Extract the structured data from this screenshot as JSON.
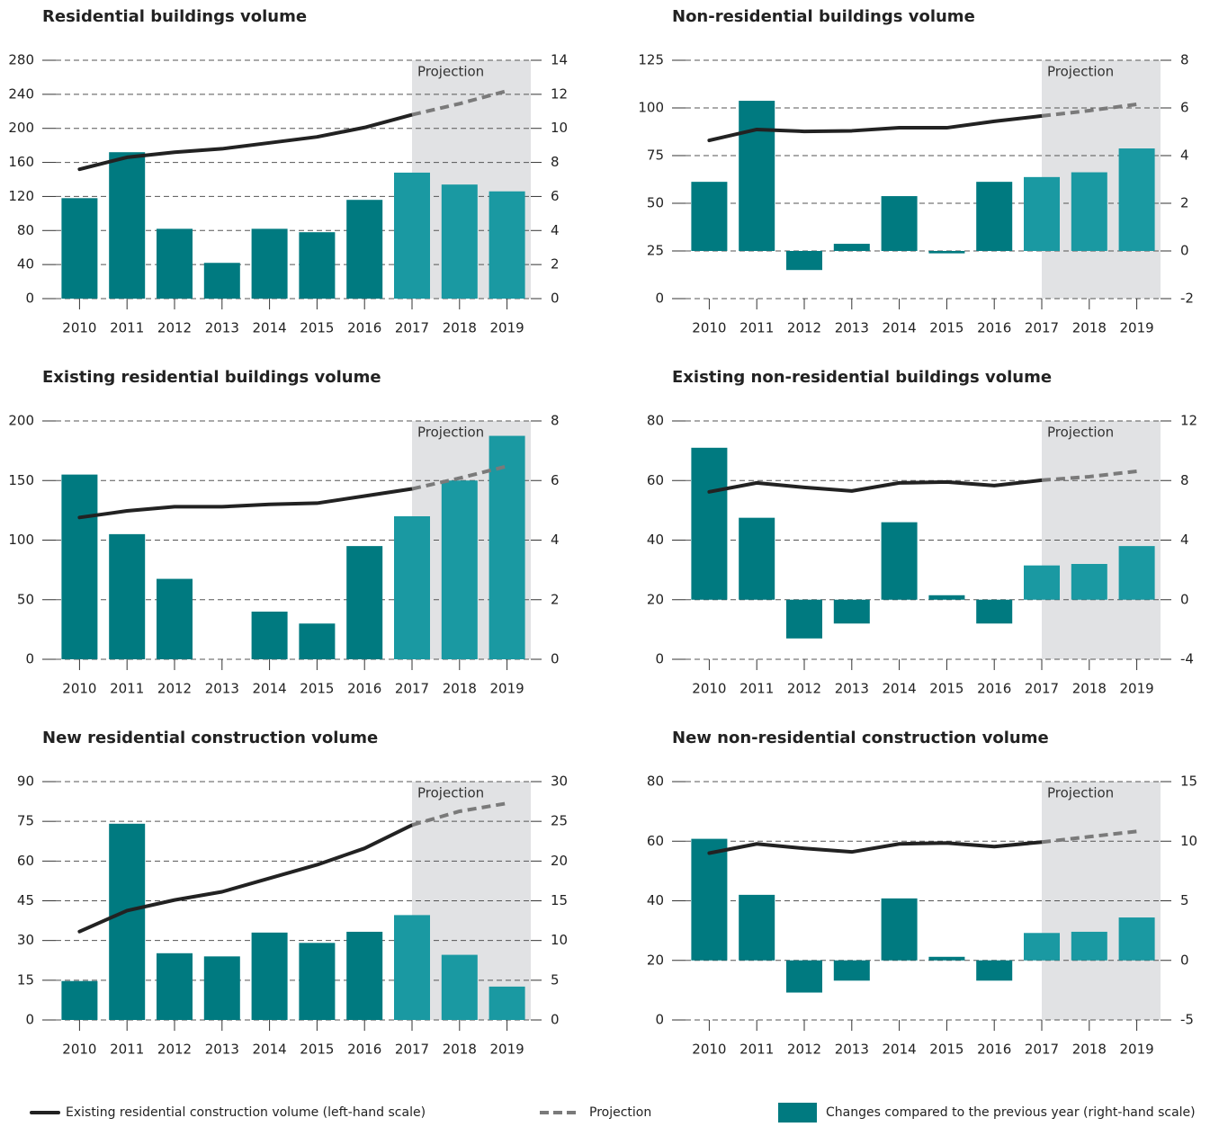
{
  "legend": [
    {
      "label": "Existing residential construction volume (left-hand scale)",
      "color": "#222222",
      "style": "line"
    },
    {
      "label": "Projection",
      "color": "#7a7a7a",
      "style": "dashed"
    },
    {
      "label": "Changes compared to the previous year (right-hand scale)",
      "color": "#007a80",
      "style": "box"
    }
  ],
  "chart_data": [
    {
      "type": "combo",
      "title": "Residential buildings volume",
      "annotation": "Projection",
      "projection_start": "2017",
      "categories": [
        "2010",
        "2011",
        "2012",
        "2013",
        "2014",
        "2015",
        "2016",
        "2017",
        "2018",
        "2019"
      ],
      "ylim": [
        0,
        280
      ],
      "yticks": [
        0,
        40,
        80,
        120,
        160,
        200,
        240,
        280
      ],
      "y2lim": [
        0,
        14
      ],
      "y2ticks": [
        0,
        2,
        4,
        6,
        8,
        10,
        12,
        14
      ],
      "grid": true,
      "series": [
        {
          "type": "line",
          "color": "#222222",
          "values": [
            152,
            166,
            172,
            176,
            183,
            190,
            201,
            216,
            null,
            null
          ]
        },
        {
          "type": "line",
          "dashed": true,
          "color": "#7a7a7a",
          "values": [
            null,
            null,
            null,
            null,
            null,
            null,
            null,
            216,
            229,
            244
          ]
        },
        {
          "type": "bar",
          "axis": "y2",
          "colors": [
            "#007a80",
            "#007a80",
            "#007a80",
            "#007a80",
            "#007a80",
            "#007a80",
            "#007a80",
            "#1a99a2",
            "#1a99a2",
            "#1a99a2"
          ],
          "values": [
            5.9,
            8.6,
            4.1,
            2.1,
            4.1,
            3.9,
            5.8,
            7.4,
            6.7,
            6.3
          ]
        }
      ]
    },
    {
      "type": "combo",
      "title": "Non-residential buildings volume",
      "annotation": "Projection",
      "projection_start": "2017",
      "categories": [
        "2010",
        "2011",
        "2012",
        "2013",
        "2014",
        "2015",
        "2016",
        "2017",
        "2018",
        "2019"
      ],
      "ylim": [
        0,
        125
      ],
      "yticks": [
        0,
        25,
        50,
        75,
        100,
        125
      ],
      "y2lim": [
        -2,
        8
      ],
      "y2ticks": [
        -2,
        0,
        2,
        4,
        6,
        8
      ],
      "grid": true,
      "series": [
        {
          "type": "line",
          "color": "#222222",
          "values": [
            83,
            88.7,
            87.7,
            88,
            89.6,
            89.6,
            93,
            95.8,
            null,
            null
          ]
        },
        {
          "type": "line",
          "dashed": true,
          "color": "#7a7a7a",
          "values": [
            null,
            null,
            null,
            null,
            null,
            null,
            null,
            95.8,
            98.6,
            101.9
          ]
        },
        {
          "type": "bar",
          "axis": "y2",
          "colors": [
            "#007a80",
            "#007a80",
            "#007a80",
            "#007a80",
            "#007a80",
            "#007a80",
            "#007a80",
            "#1a99a2",
            "#1a99a2",
            "#1a99a2"
          ],
          "values": [
            2.9,
            6.3,
            -0.8,
            0.3,
            2.3,
            -0.1,
            2.9,
            3.1,
            3.3,
            4.3
          ]
        }
      ]
    },
    {
      "type": "combo",
      "title": "Existing residential buildings volume",
      "annotation": "Projection",
      "projection_start": "2017",
      "categories": [
        "2010",
        "2011",
        "2012",
        "2013",
        "2014",
        "2015",
        "2016",
        "2017",
        "2018",
        "2019"
      ],
      "ylim": [
        0,
        200
      ],
      "yticks": [
        0,
        50,
        100,
        150,
        200
      ],
      "y2lim": [
        0,
        8
      ],
      "y2ticks": [
        0,
        2,
        4,
        6,
        8
      ],
      "grid": true,
      "series": [
        {
          "type": "line",
          "color": "#222222",
          "values": [
            119,
            124.5,
            128,
            128,
            130,
            131,
            137,
            143,
            null,
            null
          ]
        },
        {
          "type": "line",
          "dashed": true,
          "color": "#7a7a7a",
          "values": [
            null,
            null,
            null,
            null,
            null,
            null,
            null,
            143,
            152,
            162
          ]
        },
        {
          "type": "bar",
          "axis": "y2",
          "colors": [
            "#007a80",
            "#007a80",
            "#007a80",
            "#007a80",
            "#007a80",
            "#007a80",
            "#007a80",
            "#1a99a2",
            "#1a99a2",
            "#1a99a2"
          ],
          "values": [
            6.2,
            4.2,
            2.7,
            0,
            1.6,
            1.2,
            3.8,
            4.8,
            6.0,
            7.5
          ]
        }
      ]
    },
    {
      "type": "combo",
      "title": "Existing non-residential buildings volume",
      "annotation": "Projection",
      "projection_start": "2017",
      "categories": [
        "2010",
        "2011",
        "2012",
        "2013",
        "2014",
        "2015",
        "2016",
        "2017",
        "2018",
        "2019"
      ],
      "ylim": [
        0,
        80
      ],
      "yticks": [
        0,
        20,
        40,
        60,
        80
      ],
      "y2lim": [
        -4,
        12
      ],
      "y2ticks": [
        -4,
        0,
        4,
        8,
        12
      ],
      "grid": true,
      "series": [
        {
          "type": "line",
          "color": "#222222",
          "values": [
            56.2,
            59.2,
            57.7,
            56.5,
            59.2,
            59.5,
            58.3,
            60.1,
            null,
            null
          ]
        },
        {
          "type": "line",
          "dashed": true,
          "color": "#7a7a7a",
          "values": [
            null,
            null,
            null,
            null,
            null,
            null,
            null,
            60.1,
            61.3,
            63.1
          ]
        },
        {
          "type": "bar",
          "axis": "y2",
          "colors": [
            "#007a80",
            "#007a80",
            "#007a80",
            "#007a80",
            "#007a80",
            "#007a80",
            "#007a80",
            "#1a99a2",
            "#1a99a2",
            "#1a99a2"
          ],
          "values": [
            10.2,
            5.5,
            -2.6,
            -1.6,
            5.2,
            0.3,
            -1.6,
            2.3,
            2.4,
            3.6
          ]
        }
      ]
    },
    {
      "type": "combo",
      "title": "New residential construction volume",
      "annotation": "Projection",
      "projection_start": "2017",
      "categories": [
        "2010",
        "2011",
        "2012",
        "2013",
        "2014",
        "2015",
        "2016",
        "2017",
        "2018",
        "2019"
      ],
      "ylim": [
        0,
        90
      ],
      "yticks": [
        0,
        15,
        30,
        45,
        60,
        75,
        90
      ],
      "y2lim": [
        0,
        30
      ],
      "y2ticks": [
        0,
        5,
        10,
        15,
        20,
        25,
        30
      ],
      "grid": true,
      "series": [
        {
          "type": "line",
          "color": "#222222",
          "values": [
            33.4,
            41.3,
            45.3,
            48.4,
            53.5,
            58.6,
            64.8,
            73.6,
            null,
            null
          ]
        },
        {
          "type": "line",
          "dashed": true,
          "color": "#7a7a7a",
          "values": [
            null,
            null,
            null,
            null,
            null,
            null,
            null,
            73.6,
            78.8,
            81.8
          ]
        },
        {
          "type": "bar",
          "axis": "y2",
          "colors": [
            "#007a80",
            "#007a80",
            "#007a80",
            "#007a80",
            "#007a80",
            "#007a80",
            "#007a80",
            "#1a99a2",
            "#1a99a2",
            "#1a99a2"
          ],
          "values": [
            4.9,
            24.7,
            8.4,
            8.0,
            11.0,
            9.7,
            11.1,
            13.2,
            8.2,
            4.2
          ]
        }
      ]
    },
    {
      "type": "combo",
      "title": "New non-residential construction volume",
      "annotation": "Projection",
      "projection_start": "2017",
      "categories": [
        "2010",
        "2011",
        "2012",
        "2013",
        "2014",
        "2015",
        "2016",
        "2017",
        "2018",
        "2019"
      ],
      "ylim": [
        0,
        80
      ],
      "yticks": [
        0,
        20,
        40,
        60,
        80
      ],
      "y2lim": [
        -5,
        15
      ],
      "y2ticks": [
        -5,
        0,
        5,
        10,
        15
      ],
      "grid": true,
      "series": [
        {
          "type": "line",
          "color": "#222222",
          "values": [
            56,
            59.1,
            57.6,
            56.4,
            59.1,
            59.4,
            58.2,
            59.7,
            null,
            null
          ]
        },
        {
          "type": "line",
          "dashed": true,
          "color": "#7a7a7a",
          "values": [
            null,
            null,
            null,
            null,
            null,
            null,
            null,
            59.7,
            61.5,
            63.3
          ]
        },
        {
          "type": "bar",
          "axis": "y2",
          "colors": [
            "#007a80",
            "#007a80",
            "#007a80",
            "#007a80",
            "#007a80",
            "#007a80",
            "#007a80",
            "#1a99a2",
            "#1a99a2",
            "#1a99a2"
          ],
          "values": [
            10.2,
            5.5,
            -2.7,
            -1.7,
            5.2,
            0.3,
            -1.7,
            2.3,
            2.4,
            3.6
          ]
        }
      ]
    }
  ]
}
